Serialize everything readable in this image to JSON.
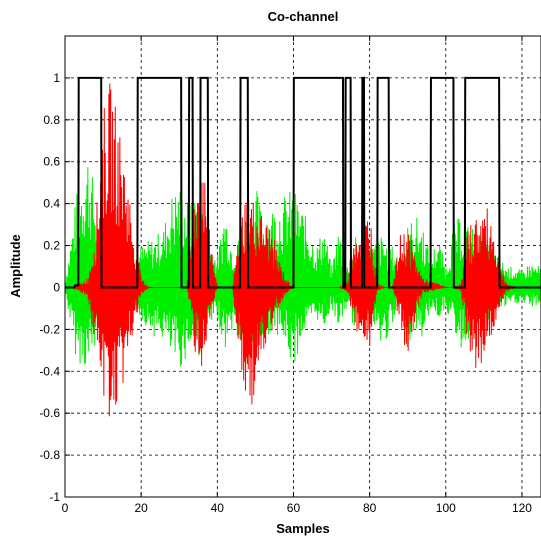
{
  "chart_data": {
    "type": "line",
    "title": "Co-channel",
    "xlabel": "Samples",
    "ylabel": "Amplitude",
    "xlim": [
      0,
      125
    ],
    "ylim": [
      -1,
      1.2
    ],
    "grid": true,
    "grid_style": "dashed",
    "x_ticks": [
      0,
      20,
      40,
      60,
      80,
      100,
      120
    ],
    "x_tick_labels": [
      "0",
      "20",
      "40",
      "60",
      "80",
      "100",
      "120"
    ],
    "y_ticks": [
      -1,
      -0.8,
      -0.6,
      -0.4,
      -0.2,
      0,
      0.2,
      0.4,
      0.6,
      0.8,
      1
    ],
    "y_tick_labels": [
      "-1",
      "-0.8",
      "-0.6",
      "-0.4",
      "-0.2",
      "0",
      "0.2",
      "0.4",
      "0.6",
      "0.8",
      "1"
    ],
    "series": [
      {
        "color": "#00ee00",
        "style": "dense-signal",
        "envelope_x": [
          0,
          3,
          6,
          8,
          10,
          14,
          18,
          20,
          24,
          26,
          28,
          30,
          33,
          35,
          37,
          40,
          42,
          44,
          46,
          48,
          50,
          52,
          55,
          58,
          60,
          62,
          64,
          66,
          68,
          70,
          72,
          74,
          76,
          78,
          80,
          83,
          86,
          88,
          90,
          92,
          94,
          96,
          98,
          100,
          102,
          104,
          106,
          108,
          110,
          112,
          114,
          116,
          118,
          120,
          122,
          125
        ],
        "envelope_upper": [
          0.02,
          0.45,
          0.68,
          0.45,
          0.1,
          0.1,
          0.1,
          0.2,
          0.25,
          0.3,
          0.45,
          0.5,
          0.4,
          0.5,
          0.25,
          0.15,
          0.4,
          0.2,
          0.25,
          0.4,
          0.5,
          0.35,
          0.4,
          0.45,
          0.48,
          0.4,
          0.3,
          0.2,
          0.3,
          0.1,
          0.3,
          0.1,
          0.25,
          0.2,
          0.2,
          0.25,
          0.2,
          0.15,
          0.3,
          0.35,
          0.3,
          0.15,
          0.25,
          0.1,
          0.3,
          0.35,
          0.3,
          0.3,
          0.25,
          0.2,
          0.15,
          0.1,
          0.1,
          0.08,
          0.12,
          0.1
        ],
        "envelope_lower": [
          -0.02,
          -0.35,
          -0.4,
          -0.3,
          -0.1,
          -0.1,
          -0.1,
          -0.15,
          -0.25,
          -0.25,
          -0.35,
          -0.4,
          -0.3,
          -0.35,
          -0.25,
          -0.15,
          -0.3,
          -0.2,
          -0.3,
          -0.45,
          -0.35,
          -0.25,
          -0.2,
          -0.3,
          -0.4,
          -0.25,
          -0.2,
          -0.15,
          -0.2,
          -0.1,
          -0.2,
          -0.1,
          -0.2,
          -0.15,
          -0.15,
          -0.3,
          -0.2,
          -0.1,
          -0.3,
          -0.2,
          -0.25,
          -0.1,
          -0.15,
          -0.1,
          -0.2,
          -0.3,
          -0.25,
          -0.2,
          -0.2,
          -0.15,
          -0.1,
          -0.1,
          -0.08,
          -0.08,
          -0.1,
          -0.08
        ]
      },
      {
        "color": "#ff0000",
        "style": "dense-signal",
        "envelope_x": [
          0,
          2,
          4,
          6,
          8,
          10,
          12,
          14,
          16,
          18,
          20,
          22,
          24,
          26,
          28,
          30,
          32,
          34,
          36,
          38,
          40,
          42,
          44,
          46,
          48,
          50,
          52,
          54,
          56,
          58,
          60,
          62,
          64,
          66,
          68,
          70,
          72,
          74,
          76,
          78,
          80,
          82,
          84,
          86,
          88,
          90,
          92,
          94,
          96,
          98,
          100,
          102,
          104,
          106,
          108,
          110,
          112,
          114,
          116,
          118,
          120,
          122,
          125
        ],
        "envelope_upper": [
          0,
          0,
          0.02,
          0.05,
          0.3,
          0.85,
          1.0,
          0.8,
          0.6,
          0.3,
          0.05,
          0,
          0,
          0,
          0,
          0,
          0,
          0.45,
          0.7,
          0.3,
          0,
          0,
          0,
          0.35,
          0.5,
          0.4,
          0.35,
          0.3,
          0.15,
          0.05,
          0,
          0,
          0,
          0,
          0,
          0,
          0,
          0.02,
          0.3,
          0.3,
          0.4,
          0.02,
          0,
          0,
          0.25,
          0.3,
          0.15,
          0.05,
          0.03,
          0.02,
          0,
          0,
          0.02,
          0.3,
          0.35,
          0.4,
          0.35,
          0.15,
          0.02,
          0,
          0,
          0,
          0
        ],
        "envelope_lower": [
          0,
          0,
          -0.02,
          -0.05,
          -0.3,
          -0.55,
          -0.65,
          -0.6,
          -0.4,
          -0.2,
          -0.05,
          0,
          0,
          0,
          0,
          0,
          0,
          -0.3,
          -0.4,
          -0.2,
          0,
          0,
          0,
          -0.4,
          -0.65,
          -0.5,
          -0.35,
          -0.25,
          -0.1,
          -0.03,
          0,
          0,
          0,
          0,
          0,
          0,
          0,
          -0.02,
          -0.2,
          -0.25,
          -0.3,
          -0.02,
          0,
          0,
          -0.2,
          -0.4,
          -0.15,
          -0.03,
          -0.02,
          -0.01,
          0,
          0,
          -0.02,
          -0.3,
          -0.4,
          -0.35,
          -0.25,
          -0.1,
          -0.02,
          0,
          0,
          0,
          0
        ]
      },
      {
        "color": "#000000",
        "style": "step",
        "x": [
          0,
          2.5,
          2.6,
          3.5,
          3.6,
          9.5,
          9.6,
          19,
          19.1,
          30.5,
          30.6,
          32.5,
          32.6,
          33.5,
          33.6,
          35.5,
          35.6,
          37.5,
          37.6,
          46,
          46.1,
          48,
          48.1,
          60,
          60.1,
          73,
          73.1,
          73.6,
          73.7,
          75,
          75.1,
          78,
          78.1,
          78.5,
          78.6,
          82,
          82.1,
          85,
          85.1,
          96,
          96.1,
          102,
          102.1,
          105,
          105.1,
          114,
          114.1,
          125
        ],
        "y": [
          0,
          0,
          0.01,
          0.01,
          1,
          1,
          0,
          0,
          1,
          1,
          0,
          0,
          1,
          1,
          0,
          0,
          1,
          1,
          0,
          0,
          1,
          1,
          0,
          0,
          1,
          1,
          0,
          0,
          1,
          1,
          0,
          0,
          1,
          1,
          0,
          0,
          1,
          1,
          0,
          0,
          1,
          1,
          0,
          0,
          1,
          1,
          0,
          0
        ]
      }
    ]
  }
}
